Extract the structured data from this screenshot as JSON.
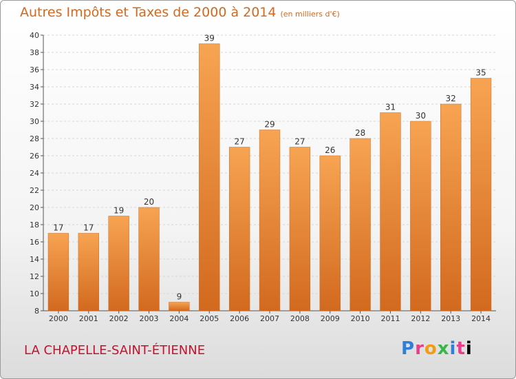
{
  "header": {
    "title": "Autres Impôts et Taxes de 2000 à 2014",
    "unit": "(en milliers d'€)"
  },
  "footer": {
    "commune": "LA CHAPELLE-SAINT-ÉTIENNE",
    "logo_letters": [
      "P",
      "r",
      "o",
      "x",
      "i",
      "t",
      "i"
    ]
  },
  "colors": {
    "bar_top": "#f7a452",
    "bar_bottom": "#d2691e",
    "title": "#d2691e",
    "commune": "#c8102e"
  },
  "chart_data": {
    "type": "bar",
    "title": "Autres Impôts et Taxes de 2000 à 2014",
    "subtitle": "(en milliers d'€)",
    "xlabel": "",
    "ylabel": "",
    "categories": [
      "2000",
      "2001",
      "2002",
      "2003",
      "2004",
      "2005",
      "2006",
      "2007",
      "2008",
      "2009",
      "2010",
      "2011",
      "2012",
      "2013",
      "2014"
    ],
    "values": [
      17,
      17,
      19,
      20,
      9,
      39,
      27,
      29,
      27,
      26,
      28,
      31,
      30,
      32,
      35
    ],
    "ylim": [
      8,
      40
    ],
    "yticks": [
      8,
      10,
      12,
      14,
      16,
      18,
      20,
      22,
      24,
      26,
      28,
      30,
      32,
      34,
      36,
      38,
      40
    ],
    "grid": true,
    "data_labels": true
  }
}
